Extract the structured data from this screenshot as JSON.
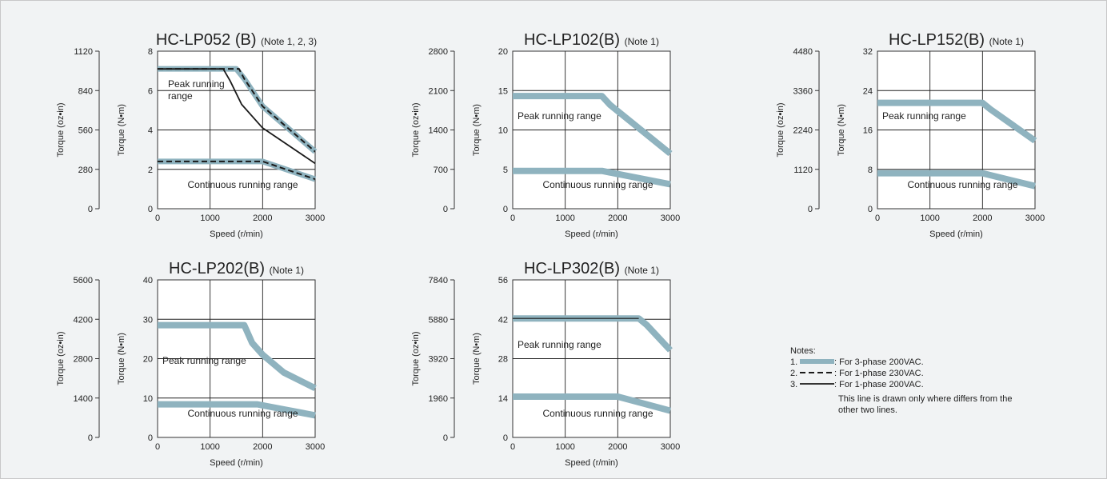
{
  "chart_data": [
    {
      "type": "line",
      "title": "HC-LP052 (B)",
      "title_note": "(Note 1, 2, 3)",
      "xlabel": "Speed  (r/min)",
      "ylabel": "Torque (N•m)",
      "y2label": "Torque (oz•in)",
      "xlim": [
        0,
        3000
      ],
      "ylim": [
        0,
        8
      ],
      "x_ticks": [
        "1000",
        "2000",
        "3000"
      ],
      "y_ticks": [
        "0",
        "2",
        "4",
        "6",
        "8"
      ],
      "y2_ticks": [
        "0",
        "280",
        "560",
        "840",
        "1120"
      ],
      "peak_label": [
        "Peak running",
        "range"
      ],
      "cont_label": "Continuous running range",
      "series": [
        {
          "style": "solid-thick",
          "x": [
            0,
            1500,
            1650,
            2000,
            3000
          ],
          "y": [
            7.1,
            7.1,
            6.6,
            5.2,
            2.9
          ]
        },
        {
          "style": "dashed",
          "x": [
            0,
            1550,
            1650,
            2000,
            3000
          ],
          "y": [
            7.1,
            7.1,
            6.6,
            5.2,
            2.9
          ]
        },
        {
          "style": "solid-thin",
          "x": [
            0,
            1250,
            1380,
            1600,
            2000,
            3000
          ],
          "y": [
            7.1,
            7.1,
            6.5,
            5.3,
            4.1,
            2.3
          ]
        },
        {
          "style": "solid-thick",
          "x": [
            0,
            2000,
            3000
          ],
          "y": [
            2.4,
            2.4,
            1.5
          ]
        },
        {
          "style": "dashed",
          "x": [
            0,
            2000,
            3000
          ],
          "y": [
            2.4,
            2.4,
            1.5
          ]
        }
      ]
    },
    {
      "type": "line",
      "title": "HC-LP102(B)",
      "title_note": "(Note 1)",
      "xlabel": "Speed  (r/min)",
      "ylabel": "Torque (N•m)",
      "y2label": "Torque (oz•in)",
      "xlim": [
        0,
        3000
      ],
      "ylim": [
        0,
        20
      ],
      "x_ticks": [
        "1000",
        "2000",
        "3000"
      ],
      "y_ticks": [
        "0",
        "5",
        "10",
        "15",
        "20"
      ],
      "y2_ticks": [
        "0",
        "700",
        "1400",
        "2100",
        "2800"
      ],
      "peak_label": [
        "Peak running range"
      ],
      "cont_label": "Continuous running range",
      "series": [
        {
          "style": "solid-thick",
          "x": [
            0,
            1700,
            1850,
            3000
          ],
          "y": [
            14.3,
            14.3,
            13.2,
            7.0
          ]
        },
        {
          "style": "solid-thick",
          "x": [
            0,
            1700,
            1850,
            3000
          ],
          "y": [
            4.8,
            4.8,
            4.6,
            3.1
          ]
        }
      ]
    },
    {
      "type": "line",
      "title": "HC-LP152(B)",
      "title_note": "(Note 1)",
      "xlabel": "Speed  (r/min)",
      "ylabel": "Torque (N•m)",
      "y2label": "Torque (oz•in)",
      "xlim": [
        0,
        3000
      ],
      "ylim": [
        0,
        32
      ],
      "x_ticks": [
        "1000",
        "2000",
        "3000"
      ],
      "y_ticks": [
        "0",
        "8",
        "16",
        "24",
        "32"
      ],
      "y2_ticks": [
        "0",
        "1120",
        "2240",
        "3360",
        "4480"
      ],
      "peak_label": [
        "Peak running range"
      ],
      "cont_label": "Continuous running range",
      "series": [
        {
          "style": "solid-thick",
          "x": [
            0,
            2000,
            2150,
            3000
          ],
          "y": [
            21.5,
            21.5,
            20.2,
            13.8
          ]
        },
        {
          "style": "solid-thick",
          "x": [
            0,
            2000,
            3000
          ],
          "y": [
            7.2,
            7.2,
            4.6
          ]
        }
      ]
    },
    {
      "type": "line",
      "title": "HC-LP202(B)",
      "title_note": "(Note 1)",
      "xlabel": "Speed  (r/min)",
      "ylabel": "Torque (N•m)",
      "y2label": "Torque (oz•in)",
      "xlim": [
        0,
        3000
      ],
      "ylim": [
        0,
        40
      ],
      "x_ticks": [
        "1000",
        "2000",
        "3000"
      ],
      "y_ticks": [
        "0",
        "10",
        "20",
        "30",
        "40"
      ],
      "y2_ticks": [
        "0",
        "1400",
        "2800",
        "4200",
        "5600"
      ],
      "peak_label": [
        "Peak running range"
      ],
      "cont_label": "Continuous running range",
      "series": [
        {
          "style": "solid-thick",
          "x": [
            0,
            1650,
            1800,
            2000,
            2400,
            3000
          ],
          "y": [
            28.5,
            28.5,
            24.0,
            21.0,
            16.5,
            12.5
          ]
        },
        {
          "style": "solid-thick",
          "x": [
            0,
            1900,
            3000
          ],
          "y": [
            8.4,
            8.4,
            5.6
          ]
        }
      ]
    },
    {
      "type": "line",
      "title": "HC-LP302(B)",
      "title_note": "(Note 1)",
      "xlabel": "Speed  (r/min)",
      "ylabel": "Torque (N•m)",
      "y2label": "Torque (oz•in)",
      "xlim": [
        0,
        3000
      ],
      "ylim": [
        0,
        56
      ],
      "x_ticks": [
        "1000",
        "2000",
        "3000"
      ],
      "y_ticks": [
        "0",
        "14",
        "28",
        "42",
        "56"
      ],
      "y2_ticks": [
        "0",
        "1960",
        "3920",
        "5880",
        "7840"
      ],
      "peak_label": [
        "Peak running range"
      ],
      "cont_label": "Continuous running range",
      "series": [
        {
          "style": "solid-thick",
          "x": [
            0,
            2400,
            2550,
            3000
          ],
          "y": [
            42.3,
            42.3,
            40.0,
            31.0
          ]
        },
        {
          "style": "thin-overlay",
          "x": [
            0,
            2400
          ],
          "y": [
            42.3,
            42.3
          ]
        },
        {
          "style": "solid-thick",
          "x": [
            0,
            2000,
            3000
          ],
          "y": [
            14.5,
            14.5,
            9.5
          ]
        }
      ]
    }
  ],
  "notes": {
    "heading": "Notes:",
    "items": [
      {
        "num": "1.",
        "style": "solid-thick",
        "text": ": For 3-phase 200VAC."
      },
      {
        "num": "2.",
        "style": "dashed",
        "text": ": For 1-phase 230VAC."
      },
      {
        "num": "3.",
        "style": "solid-thin",
        "text": ": For 1-phase 200VAC."
      }
    ],
    "extra_lines": [
      "This line is drawn only where differs from the",
      "other two lines."
    ]
  },
  "colors": {
    "thick_line": "#8fb3bf",
    "dark_line": "#1a1a1a",
    "background": "#f1f3f4",
    "plot_bg": "#ffffff"
  }
}
